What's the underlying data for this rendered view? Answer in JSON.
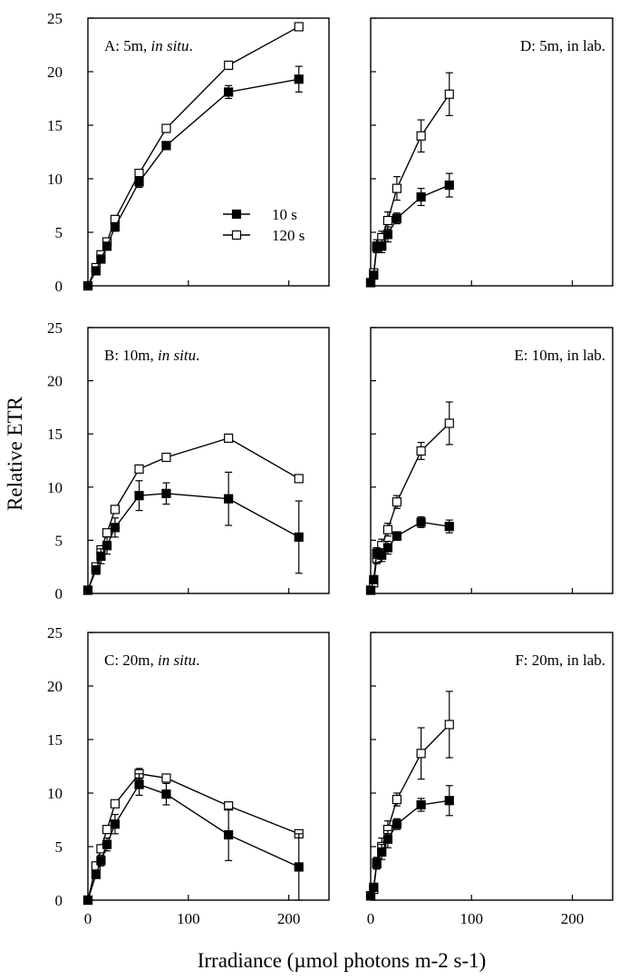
{
  "figure": {
    "ylabel": "Relative ETR",
    "xlabel": "Irradiance (µmol photons m-2 s-1)",
    "legend": [
      {
        "label": "10 s",
        "marker": "filled-square"
      },
      {
        "label": "120 s",
        "marker": "open-square"
      }
    ],
    "y_ticks": [
      "0",
      "5",
      "10",
      "15",
      "20",
      "25"
    ],
    "x_ticks": [
      "0",
      "100",
      "200"
    ]
  },
  "chart_data": [
    {
      "type": "line",
      "title": "A: 5m, in situ.",
      "title_main": "A: 5m,",
      "title_italic": "in situ",
      "title_end": ".",
      "xlim": [
        0,
        240
      ],
      "ylim": [
        0,
        25
      ],
      "series": [
        {
          "name": "10 s",
          "x": [
            0,
            8,
            13,
            19,
            27,
            51,
            78,
            140,
            210
          ],
          "y": [
            0,
            1.4,
            2.5,
            3.7,
            5.5,
            9.7,
            13.1,
            18.1,
            19.3
          ],
          "err": [
            0,
            0.2,
            0.3,
            0.3,
            0.4,
            0.5,
            0.3,
            0.6,
            1.2
          ]
        },
        {
          "name": "120 s",
          "x": [
            0,
            8,
            13,
            19,
            27,
            51,
            78,
            140,
            210
          ],
          "y": [
            0,
            1.7,
            2.9,
            4.1,
            6.2,
            10.5,
            14.7,
            20.6,
            24.2
          ],
          "err": [
            0,
            0,
            0,
            0,
            0,
            0,
            0,
            0,
            0
          ]
        }
      ]
    },
    {
      "type": "line",
      "title": "D: 5m, in lab.",
      "title_main": "D: 5m, in lab.",
      "title_italic": "",
      "title_end": "",
      "xlim": [
        0,
        240
      ],
      "ylim": [
        0,
        25
      ],
      "series": [
        {
          "name": "10 s",
          "x": [
            0,
            3,
            6,
            11,
            17,
            26,
            50,
            78
          ],
          "y": [
            0.3,
            1.0,
            3.6,
            3.7,
            4.8,
            6.3,
            8.3,
            9.4
          ],
          "err": [
            0,
            0.3,
            0.5,
            0.6,
            0.7,
            0.5,
            0.8,
            1.1
          ]
        },
        {
          "name": "120 s",
          "x": [
            0,
            3,
            6,
            11,
            17,
            26,
            50,
            78
          ],
          "y": [
            0.3,
            1.2,
            3.7,
            4.5,
            6.1,
            9.1,
            14.0,
            17.9
          ],
          "err": [
            0,
            0.3,
            0.6,
            0.6,
            0.8,
            1.1,
            1.5,
            2.0
          ]
        }
      ]
    },
    {
      "type": "line",
      "title": "B: 10m, in situ.",
      "title_main": "B: 10m,",
      "title_italic": "in situ",
      "title_end": ".",
      "xlim": [
        0,
        240
      ],
      "ylim": [
        0,
        25
      ],
      "series": [
        {
          "name": "10 s",
          "x": [
            0,
            8,
            13,
            19,
            27,
            51,
            78,
            140,
            210
          ],
          "y": [
            0.3,
            2.2,
            3.5,
            4.5,
            6.2,
            9.2,
            9.4,
            8.9,
            5.3
          ],
          "err": [
            0,
            0.4,
            0.7,
            0.8,
            0.9,
            1.4,
            1.0,
            2.5,
            3.4
          ]
        },
        {
          "name": "120 s",
          "x": [
            0,
            8,
            13,
            19,
            27,
            51,
            78,
            140,
            210
          ],
          "y": [
            0.3,
            2.5,
            4.1,
            5.7,
            7.9,
            11.7,
            12.8,
            14.6,
            10.8
          ],
          "err": [
            0,
            0,
            0,
            0,
            0,
            0,
            0,
            0,
            0
          ]
        }
      ]
    },
    {
      "type": "line",
      "title": "E: 10m, in lab.",
      "title_main": "E: 10m, in lab.",
      "title_italic": "",
      "title_end": "",
      "xlim": [
        0,
        240
      ],
      "ylim": [
        0,
        25
      ],
      "series": [
        {
          "name": "10 s",
          "x": [
            0,
            3,
            6,
            11,
            17,
            26,
            50,
            78
          ],
          "y": [
            0.3,
            1.3,
            3.8,
            3.6,
            4.3,
            5.4,
            6.7,
            6.3
          ],
          "err": [
            0,
            0.3,
            0.5,
            0.6,
            0.6,
            0.4,
            0.5,
            0.6
          ]
        },
        {
          "name": "120 s",
          "x": [
            0,
            3,
            6,
            11,
            17,
            26,
            50,
            78
          ],
          "y": [
            0.3,
            1.0,
            3.3,
            4.5,
            6.0,
            8.6,
            13.4,
            16.0
          ],
          "err": [
            0,
            0.3,
            0.5,
            0.6,
            0.6,
            0.6,
            0.8,
            2.0
          ]
        }
      ]
    },
    {
      "type": "line",
      "title": "C: 20m, in situ.",
      "title_main": "C: 20m,",
      "title_italic": "in situ",
      "title_end": ".",
      "xlim": [
        0,
        240
      ],
      "ylim": [
        0,
        25
      ],
      "series": [
        {
          "name": "10 s",
          "x": [
            0,
            8,
            13,
            19,
            27,
            51,
            78,
            140,
            210
          ],
          "y": [
            0,
            2.4,
            3.7,
            5.2,
            7.1,
            10.8,
            9.9,
            6.1,
            3.1
          ],
          "err": [
            0,
            0.3,
            0.5,
            0.6,
            0.9,
            1.0,
            1.0,
            2.4,
            3.1
          ]
        },
        {
          "name": "120 s",
          "x": [
            0,
            8,
            13,
            19,
            27,
            51,
            78,
            140,
            210
          ],
          "y": [
            0,
            3.2,
            4.8,
            6.6,
            9.0,
            11.8,
            11.4,
            8.8,
            6.2
          ],
          "err": [
            0,
            0,
            0,
            0,
            0,
            0.5,
            0,
            0,
            0
          ]
        }
      ]
    },
    {
      "type": "line",
      "title": "F: 20m, in lab.",
      "title_main": "F: 20m, in lab.",
      "title_italic": "",
      "title_end": "",
      "xlim": [
        0,
        240
      ],
      "ylim": [
        0,
        25
      ],
      "series": [
        {
          "name": "10 s",
          "x": [
            0,
            3,
            6,
            11,
            17,
            26,
            50,
            78
          ],
          "y": [
            0.4,
            1.2,
            3.5,
            4.5,
            5.7,
            7.1,
            8.9,
            9.3
          ],
          "err": [
            0,
            0.3,
            0.5,
            0.7,
            0.8,
            0.5,
            0.6,
            1.4
          ]
        },
        {
          "name": "120 s",
          "x": [
            0,
            3,
            6,
            11,
            17,
            26,
            50,
            78
          ],
          "y": [
            0.4,
            1.0,
            3.4,
            5.0,
            6.6,
            9.4,
            13.7,
            16.4
          ],
          "err": [
            0,
            0.3,
            0.5,
            0.8,
            0.8,
            0.6,
            2.4,
            3.1
          ]
        }
      ]
    }
  ]
}
